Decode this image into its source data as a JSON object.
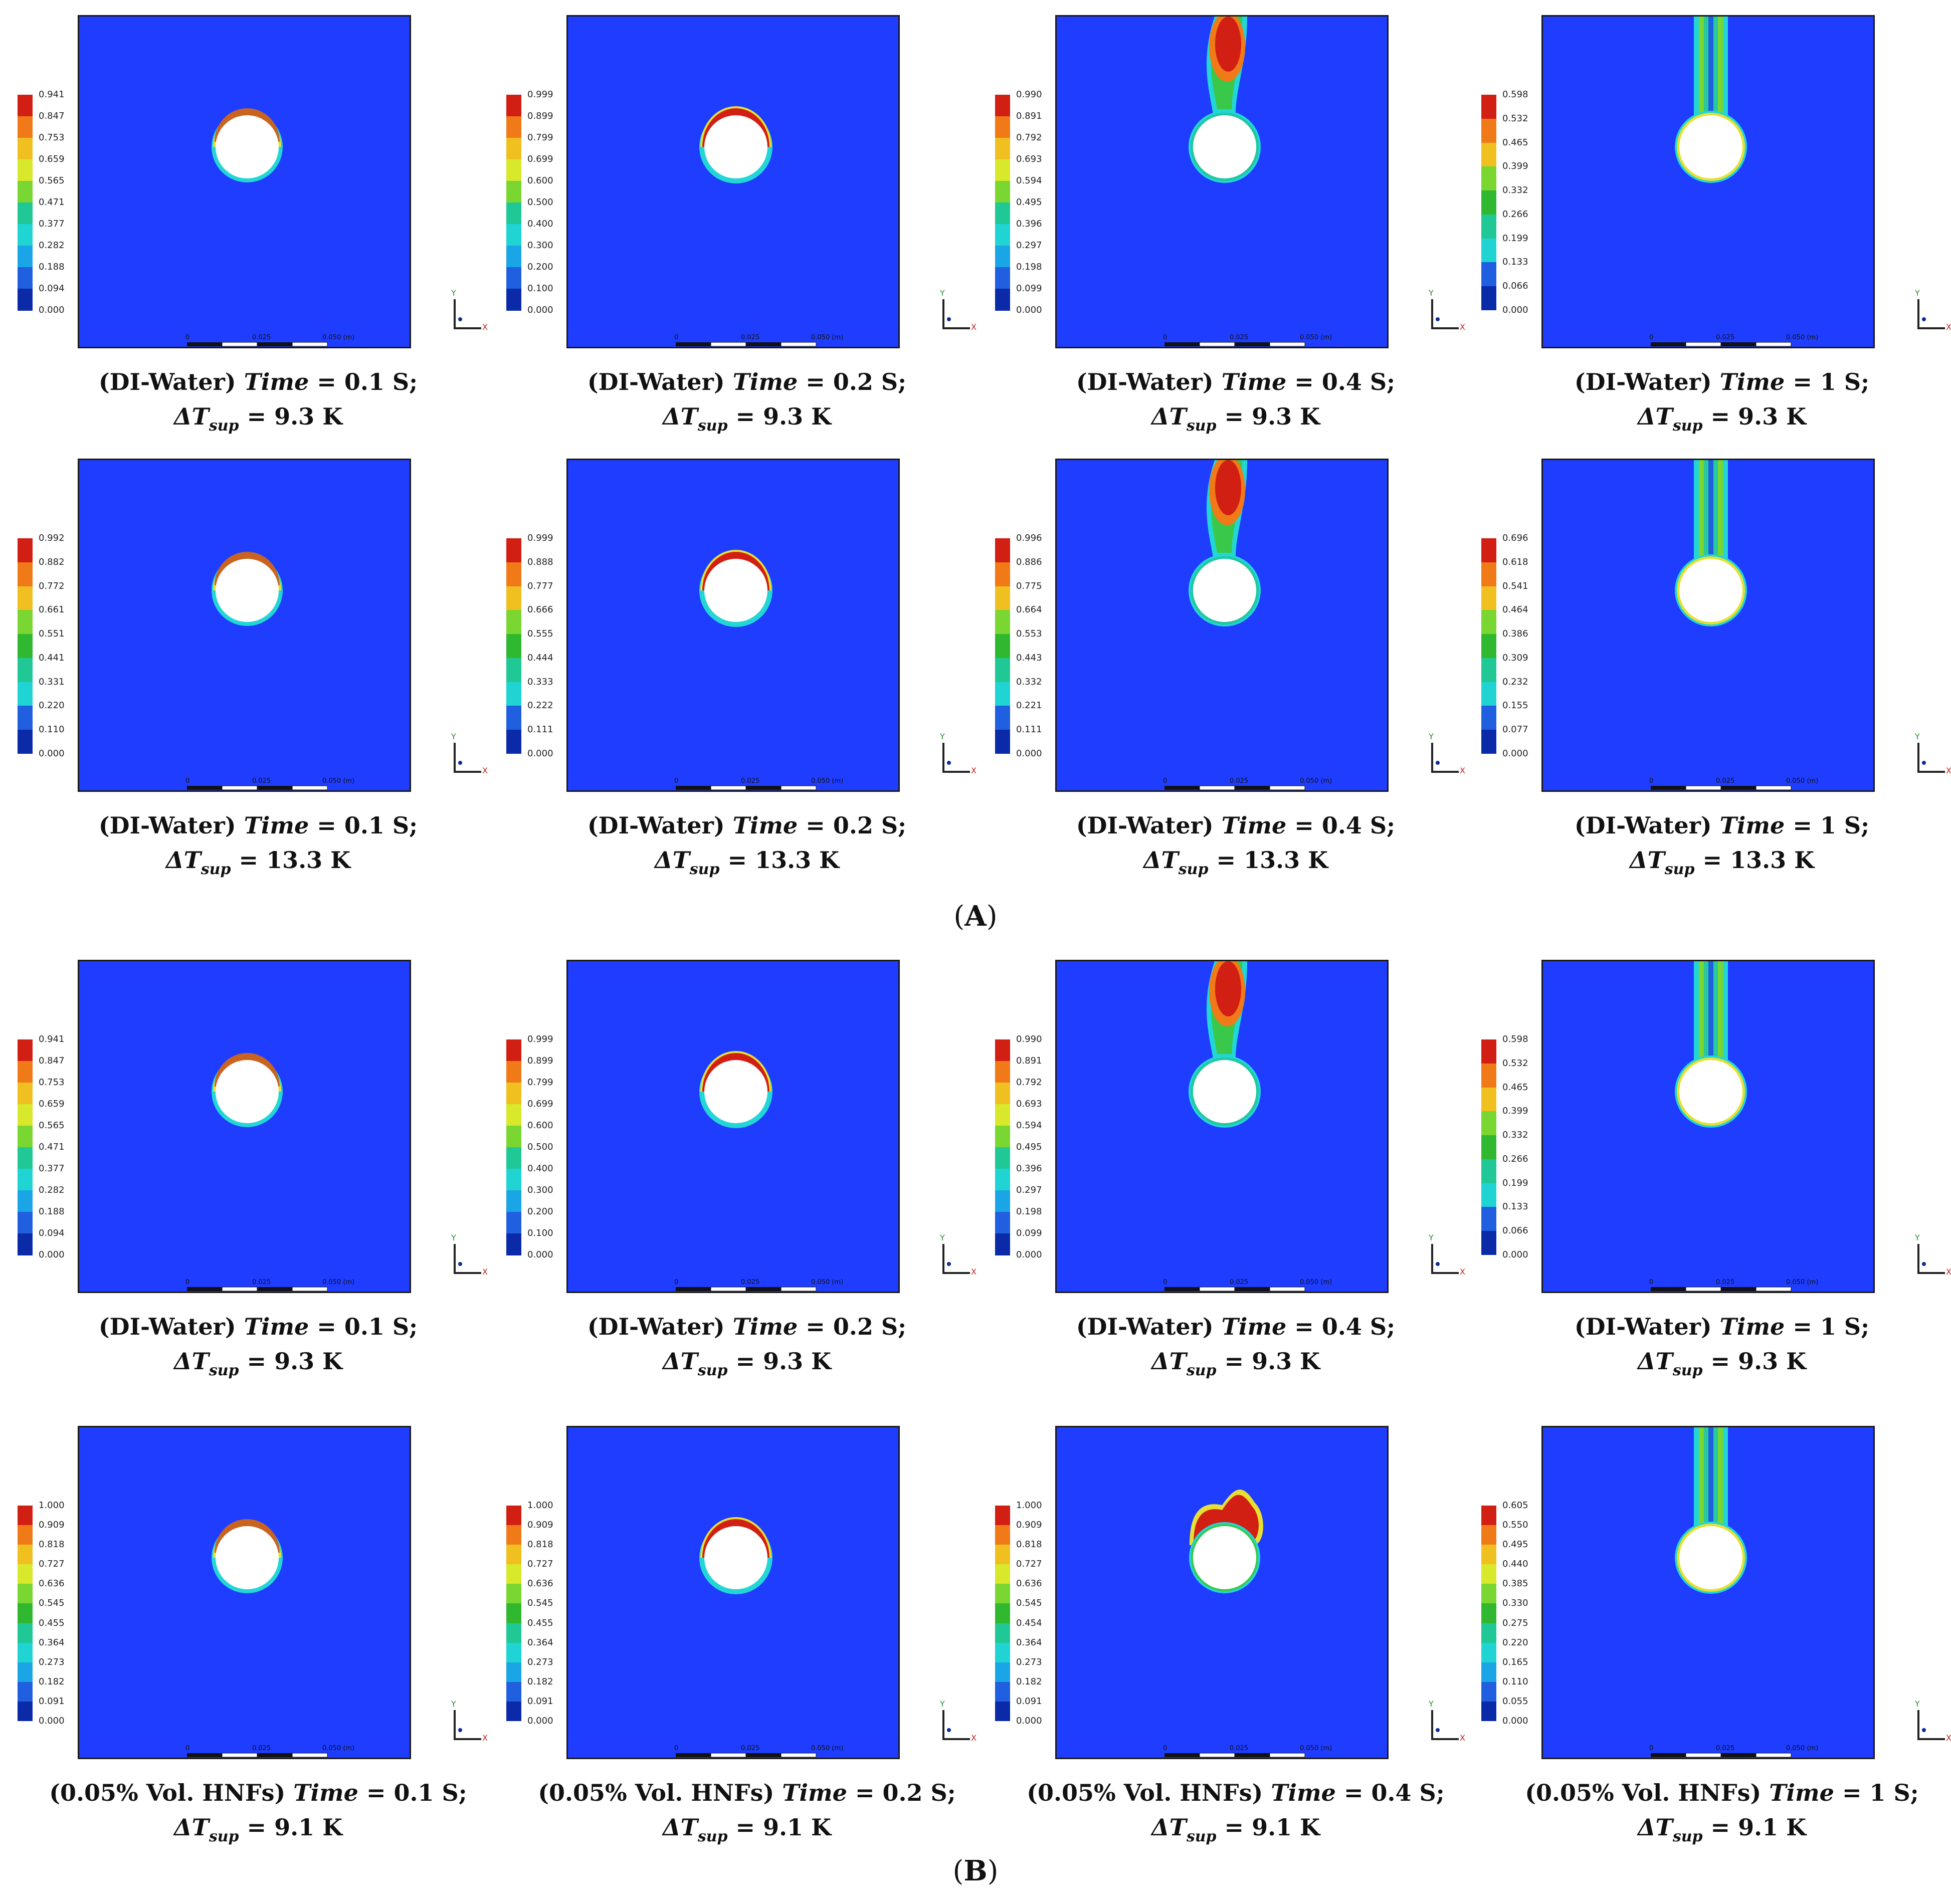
{
  "colormap": [
    "#0a2aa8",
    "#1f5fe0",
    "#1aa6e6",
    "#20d4d4",
    "#20c896",
    "#30b830",
    "#7ad630",
    "#d8e82a",
    "#f0c020",
    "#f07a18",
    "#d21f14"
  ],
  "background_color": "#1f3dff",
  "scale_bar": {
    "ticks": [
      "0",
      "0.025",
      "0.050 (m)"
    ],
    "sub_ticks": [
      "0.0125",
      "0.0375"
    ]
  },
  "axis_labels": {
    "y": "Y",
    "x": "X"
  },
  "section_labels": [
    "A",
    "B"
  ],
  "panels": [
    {
      "row": 0,
      "col": 0,
      "fluid": "(DI-Water)",
      "time": "0.1",
      "dt": "9.3",
      "plume": "small",
      "legend": [
        "0.941",
        "0.847",
        "0.753",
        "0.659",
        "0.565",
        "0.471",
        "0.377",
        "0.282",
        "0.188",
        "0.094",
        "0.000"
      ]
    },
    {
      "row": 0,
      "col": 1,
      "fluid": "(DI-Water)",
      "time": "0.2",
      "dt": "9.3",
      "plume": "cap",
      "legend": [
        "0.999",
        "0.899",
        "0.799",
        "0.699",
        "0.600",
        "0.500",
        "0.400",
        "0.300",
        "0.200",
        "0.100",
        "0.000"
      ]
    },
    {
      "row": 0,
      "col": 2,
      "fluid": "(DI-Water)",
      "time": "0.4",
      "dt": "9.3",
      "plume": "rising",
      "legend": [
        "0.990",
        "0.891",
        "0.792",
        "0.693",
        "0.594",
        "0.495",
        "0.396",
        "0.297",
        "0.198",
        "0.099",
        "0.000"
      ]
    },
    {
      "row": 0,
      "col": 3,
      "fluid": "(DI-Water)",
      "time": "1",
      "dt": "9.3",
      "plume": "column",
      "legend": [
        "0.598",
        "0.532",
        "0.465",
        "0.399",
        "0.332",
        "0.266",
        "0.199",
        "0.133",
        "0.066",
        "0.000"
      ]
    },
    {
      "row": 1,
      "col": 0,
      "fluid": "(DI-Water)",
      "time": "0.1",
      "dt": "13.3",
      "plume": "small",
      "legend": [
        "0.992",
        "0.882",
        "0.772",
        "0.661",
        "0.551",
        "0.441",
        "0.331",
        "0.220",
        "0.110",
        "0.000"
      ]
    },
    {
      "row": 1,
      "col": 1,
      "fluid": "(DI-Water)",
      "time": "0.2",
      "dt": "13.3",
      "plume": "cap",
      "legend": [
        "0.999",
        "0.888",
        "0.777",
        "0.666",
        "0.555",
        "0.444",
        "0.333",
        "0.222",
        "0.111",
        "0.000"
      ]
    },
    {
      "row": 1,
      "col": 2,
      "fluid": "(DI-Water)",
      "time": "0.4",
      "dt": "13.3",
      "plume": "rising",
      "legend": [
        "0.996",
        "0.886",
        "0.775",
        "0.664",
        "0.553",
        "0.443",
        "0.332",
        "0.221",
        "0.111",
        "0.000"
      ]
    },
    {
      "row": 1,
      "col": 3,
      "fluid": "(DI-Water)",
      "time": "1",
      "dt": "13.3",
      "plume": "column",
      "legend": [
        "0.696",
        "0.618",
        "0.541",
        "0.464",
        "0.386",
        "0.309",
        "0.232",
        "0.155",
        "0.077",
        "0.000"
      ]
    },
    {
      "row": 2,
      "col": 0,
      "fluid": "(DI-Water)",
      "time": "0.1",
      "dt": "9.3",
      "plume": "small",
      "legend": [
        "0.941",
        "0.847",
        "0.753",
        "0.659",
        "0.565",
        "0.471",
        "0.377",
        "0.282",
        "0.188",
        "0.094",
        "0.000"
      ]
    },
    {
      "row": 2,
      "col": 1,
      "fluid": "(DI-Water)",
      "time": "0.2",
      "dt": "9.3",
      "plume": "cap",
      "legend": [
        "0.999",
        "0.899",
        "0.799",
        "0.699",
        "0.600",
        "0.500",
        "0.400",
        "0.300",
        "0.200",
        "0.100",
        "0.000"
      ]
    },
    {
      "row": 2,
      "col": 2,
      "fluid": "(DI-Water)",
      "time": "0.4",
      "dt": "9.3",
      "plume": "rising",
      "legend": [
        "0.990",
        "0.891",
        "0.792",
        "0.693",
        "0.594",
        "0.495",
        "0.396",
        "0.297",
        "0.198",
        "0.099",
        "0.000"
      ]
    },
    {
      "row": 2,
      "col": 3,
      "fluid": "(DI-Water)",
      "time": "1",
      "dt": "9.3",
      "plume": "column",
      "legend": [
        "0.598",
        "0.532",
        "0.465",
        "0.399",
        "0.332",
        "0.266",
        "0.199",
        "0.133",
        "0.066",
        "0.000"
      ]
    },
    {
      "row": 3,
      "col": 0,
      "fluid": "(0.05% Vol. HNFs)",
      "time": "0.1",
      "dt": "9.1",
      "plume": "small",
      "legend": [
        "1.000",
        "0.909",
        "0.818",
        "0.727",
        "0.636",
        "0.545",
        "0.455",
        "0.364",
        "0.273",
        "0.182",
        "0.091",
        "0.000"
      ]
    },
    {
      "row": 3,
      "col": 1,
      "fluid": "(0.05% Vol. HNFs)",
      "time": "0.2",
      "dt": "9.1",
      "plume": "cap",
      "legend": [
        "1.000",
        "0.909",
        "0.818",
        "0.727",
        "0.636",
        "0.545",
        "0.455",
        "0.364",
        "0.273",
        "0.182",
        "0.091",
        "0.000"
      ]
    },
    {
      "row": 3,
      "col": 2,
      "fluid": "(0.05% Vol. HNFs)",
      "time": "0.4",
      "dt": "9.1",
      "plume": "blob",
      "legend": [
        "1.000",
        "0.909",
        "0.818",
        "0.727",
        "0.636",
        "0.545",
        "0.454",
        "0.364",
        "0.273",
        "0.182",
        "0.091",
        "0.000"
      ]
    },
    {
      "row": 3,
      "col": 3,
      "fluid": "(0.05% Vol. HNFs)",
      "time": "1",
      "dt": "9.1",
      "plume": "column",
      "legend": [
        "0.605",
        "0.550",
        "0.495",
        "0.440",
        "0.385",
        "0.330",
        "0.275",
        "0.220",
        "0.165",
        "0.110",
        "0.055",
        "0.000"
      ]
    }
  ],
  "caption_text": {
    "time_word": "Time",
    "equals": "=",
    "unit_s": "S;",
    "delta_t": "ΔT",
    "sub": "sup",
    "unit_k": "K"
  }
}
